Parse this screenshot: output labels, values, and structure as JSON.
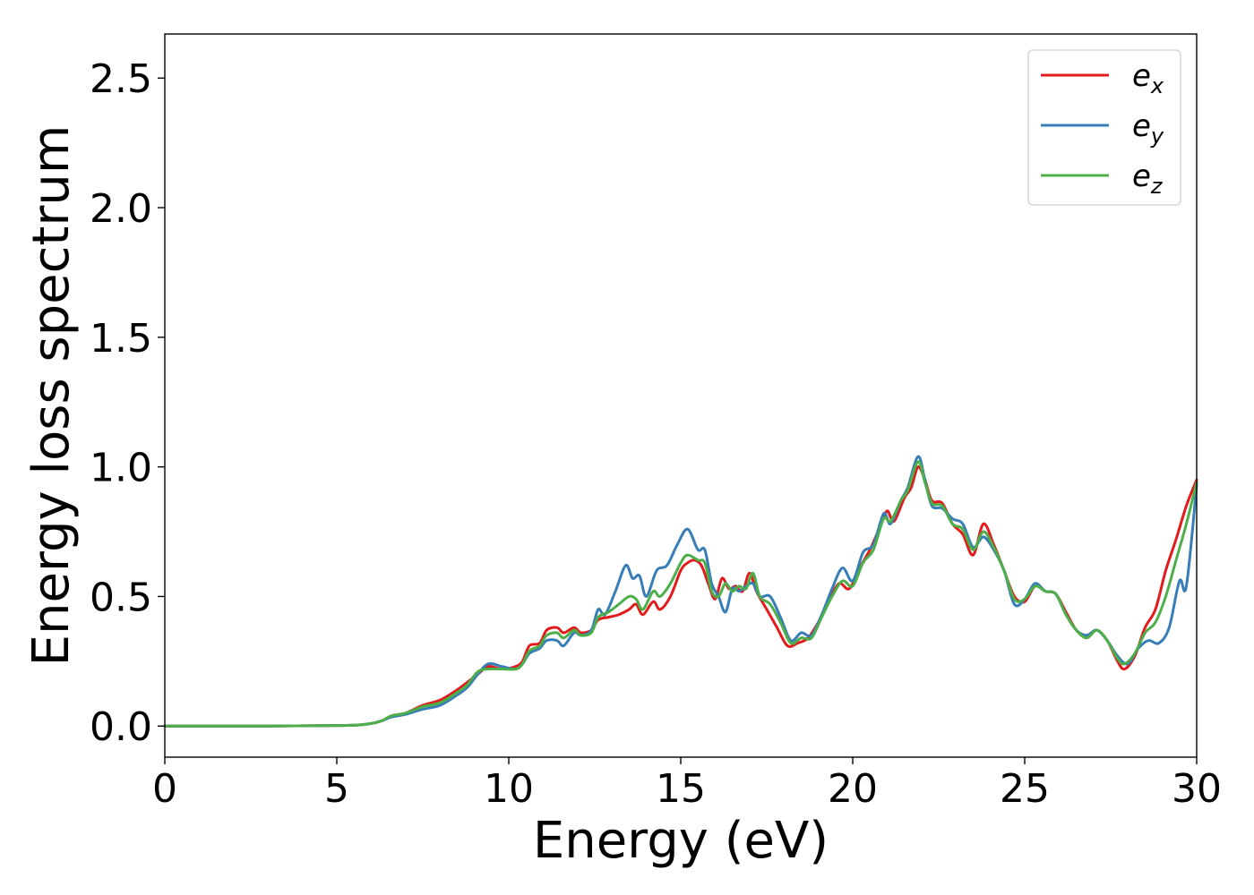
{
  "chart_data": {
    "type": "line",
    "xlabel": "Energy (eV)",
    "ylabel": "Energy loss spectrum",
    "xlim": [
      0,
      30
    ],
    "ylim": [
      -0.12,
      2.67
    ],
    "xticks": [
      0,
      5,
      10,
      15,
      20,
      25,
      30
    ],
    "xtick_labels": [
      "0",
      "5",
      "10",
      "15",
      "20",
      "25",
      "30"
    ],
    "yticks": [
      0.0,
      0.5,
      1.0,
      1.5,
      2.0,
      2.5
    ],
    "ytick_labels": [
      "0.0",
      "0.5",
      "1.0",
      "1.5",
      "2.0",
      "2.5"
    ],
    "grid": false,
    "legend_position": "top-right",
    "series": [
      {
        "name": "e",
        "subscript": "x",
        "color": "#e41a1c",
        "points": [
          [
            0,
            0
          ],
          [
            3,
            0
          ],
          [
            5,
            0.002
          ],
          [
            5.6,
            0.004
          ],
          [
            6,
            0.01
          ],
          [
            6.3,
            0.02
          ],
          [
            6.6,
            0.04
          ],
          [
            7,
            0.05
          ],
          [
            7.5,
            0.08
          ],
          [
            8,
            0.1
          ],
          [
            8.5,
            0.14
          ],
          [
            8.8,
            0.17
          ],
          [
            9.1,
            0.2
          ],
          [
            9.4,
            0.23
          ],
          [
            9.8,
            0.22
          ],
          [
            10.2,
            0.23
          ],
          [
            10.4,
            0.25
          ],
          [
            10.6,
            0.31
          ],
          [
            10.9,
            0.32
          ],
          [
            11.1,
            0.37
          ],
          [
            11.4,
            0.38
          ],
          [
            11.6,
            0.36
          ],
          [
            11.9,
            0.38
          ],
          [
            12.1,
            0.36
          ],
          [
            12.4,
            0.37
          ],
          [
            12.6,
            0.41
          ],
          [
            12.9,
            0.42
          ],
          [
            13.2,
            0.43
          ],
          [
            13.5,
            0.45
          ],
          [
            13.7,
            0.47
          ],
          [
            13.9,
            0.43
          ],
          [
            14.2,
            0.48
          ],
          [
            14.4,
            0.45
          ],
          [
            14.7,
            0.5
          ],
          [
            15,
            0.6
          ],
          [
            15.2,
            0.63
          ],
          [
            15.4,
            0.64
          ],
          [
            15.6,
            0.62
          ],
          [
            15.8,
            0.55
          ],
          [
            16,
            0.49
          ],
          [
            16.2,
            0.57
          ],
          [
            16.4,
            0.53
          ],
          [
            16.6,
            0.54
          ],
          [
            16.8,
            0.52
          ],
          [
            17,
            0.59
          ],
          [
            17.2,
            0.52
          ],
          [
            17.5,
            0.45
          ],
          [
            17.8,
            0.38
          ],
          [
            18.1,
            0.31
          ],
          [
            18.4,
            0.32
          ],
          [
            18.7,
            0.34
          ],
          [
            19,
            0.4
          ],
          [
            19.3,
            0.48
          ],
          [
            19.6,
            0.55
          ],
          [
            19.9,
            0.53
          ],
          [
            20.2,
            0.61
          ],
          [
            20.5,
            0.68
          ],
          [
            20.8,
            0.77
          ],
          [
            21,
            0.83
          ],
          [
            21.2,
            0.79
          ],
          [
            21.5,
            0.88
          ],
          [
            21.7,
            0.92
          ],
          [
            21.9,
            1.0
          ],
          [
            22.1,
            0.95
          ],
          [
            22.3,
            0.87
          ],
          [
            22.6,
            0.86
          ],
          [
            22.9,
            0.78
          ],
          [
            23.2,
            0.74
          ],
          [
            23.5,
            0.66
          ],
          [
            23.8,
            0.78
          ],
          [
            24.1,
            0.7
          ],
          [
            24.4,
            0.6
          ],
          [
            24.7,
            0.5
          ],
          [
            25,
            0.48
          ],
          [
            25.3,
            0.54
          ],
          [
            25.6,
            0.52
          ],
          [
            25.9,
            0.51
          ],
          [
            26.2,
            0.44
          ],
          [
            26.5,
            0.37
          ],
          [
            26.8,
            0.35
          ],
          [
            27.1,
            0.37
          ],
          [
            27.4,
            0.33
          ],
          [
            27.7,
            0.25
          ],
          [
            27.9,
            0.22
          ],
          [
            28.2,
            0.27
          ],
          [
            28.5,
            0.38
          ],
          [
            28.8,
            0.45
          ],
          [
            29.1,
            0.6
          ],
          [
            29.4,
            0.72
          ],
          [
            29.7,
            0.85
          ],
          [
            30,
            0.95
          ]
        ]
      },
      {
        "name": "e",
        "subscript": "y",
        "color": "#377eb8",
        "points": [
          [
            0,
            0
          ],
          [
            3,
            0
          ],
          [
            5,
            0.002
          ],
          [
            5.6,
            0.004
          ],
          [
            6,
            0.01
          ],
          [
            6.3,
            0.02
          ],
          [
            6.6,
            0.035
          ],
          [
            7,
            0.045
          ],
          [
            7.5,
            0.065
          ],
          [
            8,
            0.08
          ],
          [
            8.5,
            0.12
          ],
          [
            8.8,
            0.15
          ],
          [
            9.1,
            0.2
          ],
          [
            9.4,
            0.24
          ],
          [
            9.8,
            0.23
          ],
          [
            10.2,
            0.22
          ],
          [
            10.4,
            0.24
          ],
          [
            10.6,
            0.28
          ],
          [
            10.9,
            0.3
          ],
          [
            11.1,
            0.33
          ],
          [
            11.4,
            0.33
          ],
          [
            11.6,
            0.31
          ],
          [
            11.9,
            0.36
          ],
          [
            12.1,
            0.35
          ],
          [
            12.4,
            0.37
          ],
          [
            12.6,
            0.45
          ],
          [
            12.8,
            0.43
          ],
          [
            13.1,
            0.52
          ],
          [
            13.4,
            0.62
          ],
          [
            13.6,
            0.57
          ],
          [
            13.8,
            0.58
          ],
          [
            14,
            0.5
          ],
          [
            14.3,
            0.6
          ],
          [
            14.6,
            0.62
          ],
          [
            14.9,
            0.7
          ],
          [
            15.2,
            0.76
          ],
          [
            15.5,
            0.68
          ],
          [
            15.7,
            0.68
          ],
          [
            15.9,
            0.55
          ],
          [
            16.1,
            0.5
          ],
          [
            16.3,
            0.44
          ],
          [
            16.5,
            0.53
          ],
          [
            16.7,
            0.52
          ],
          [
            16.9,
            0.54
          ],
          [
            17.1,
            0.55
          ],
          [
            17.3,
            0.5
          ],
          [
            17.6,
            0.5
          ],
          [
            17.9,
            0.42
          ],
          [
            18.2,
            0.33
          ],
          [
            18.5,
            0.36
          ],
          [
            18.8,
            0.35
          ],
          [
            19.1,
            0.43
          ],
          [
            19.4,
            0.53
          ],
          [
            19.7,
            0.61
          ],
          [
            20,
            0.56
          ],
          [
            20.3,
            0.67
          ],
          [
            20.6,
            0.7
          ],
          [
            20.9,
            0.82
          ],
          [
            21.1,
            0.78
          ],
          [
            21.4,
            0.87
          ],
          [
            21.6,
            0.92
          ],
          [
            21.9,
            1.04
          ],
          [
            22.1,
            0.95
          ],
          [
            22.3,
            0.85
          ],
          [
            22.6,
            0.84
          ],
          [
            22.9,
            0.8
          ],
          [
            23.2,
            0.78
          ],
          [
            23.5,
            0.69
          ],
          [
            23.8,
            0.73
          ],
          [
            24.1,
            0.68
          ],
          [
            24.4,
            0.6
          ],
          [
            24.7,
            0.47
          ],
          [
            25,
            0.49
          ],
          [
            25.3,
            0.55
          ],
          [
            25.6,
            0.52
          ],
          [
            25.9,
            0.51
          ],
          [
            26.2,
            0.43
          ],
          [
            26.5,
            0.37
          ],
          [
            26.8,
            0.35
          ],
          [
            27.1,
            0.37
          ],
          [
            27.4,
            0.33
          ],
          [
            27.7,
            0.27
          ],
          [
            28,
            0.24
          ],
          [
            28.3,
            0.3
          ],
          [
            28.6,
            0.33
          ],
          [
            28.9,
            0.32
          ],
          [
            29.2,
            0.38
          ],
          [
            29.5,
            0.56
          ],
          [
            29.7,
            0.54
          ],
          [
            30,
            0.93
          ]
        ]
      },
      {
        "name": "e",
        "subscript": "z",
        "color": "#4daf4a",
        "points": [
          [
            0,
            0
          ],
          [
            3,
            0
          ],
          [
            5,
            0.002
          ],
          [
            5.6,
            0.004
          ],
          [
            6,
            0.01
          ],
          [
            6.3,
            0.02
          ],
          [
            6.6,
            0.04
          ],
          [
            7,
            0.05
          ],
          [
            7.5,
            0.075
          ],
          [
            8,
            0.09
          ],
          [
            8.5,
            0.13
          ],
          [
            8.8,
            0.16
          ],
          [
            9.1,
            0.21
          ],
          [
            9.4,
            0.22
          ],
          [
            9.8,
            0.22
          ],
          [
            10.2,
            0.22
          ],
          [
            10.4,
            0.24
          ],
          [
            10.6,
            0.29
          ],
          [
            10.9,
            0.31
          ],
          [
            11.1,
            0.35
          ],
          [
            11.4,
            0.36
          ],
          [
            11.6,
            0.34
          ],
          [
            11.9,
            0.37
          ],
          [
            12.1,
            0.35
          ],
          [
            12.4,
            0.36
          ],
          [
            12.6,
            0.42
          ],
          [
            12.9,
            0.44
          ],
          [
            13.2,
            0.47
          ],
          [
            13.5,
            0.5
          ],
          [
            13.7,
            0.49
          ],
          [
            13.9,
            0.45
          ],
          [
            14.2,
            0.52
          ],
          [
            14.4,
            0.5
          ],
          [
            14.7,
            0.55
          ],
          [
            15,
            0.63
          ],
          [
            15.2,
            0.66
          ],
          [
            15.5,
            0.64
          ],
          [
            15.7,
            0.63
          ],
          [
            15.9,
            0.52
          ],
          [
            16.1,
            0.5
          ],
          [
            16.3,
            0.55
          ],
          [
            16.5,
            0.52
          ],
          [
            16.7,
            0.54
          ],
          [
            16.9,
            0.53
          ],
          [
            17.1,
            0.59
          ],
          [
            17.3,
            0.5
          ],
          [
            17.6,
            0.47
          ],
          [
            17.9,
            0.4
          ],
          [
            18.2,
            0.32
          ],
          [
            18.5,
            0.34
          ],
          [
            18.8,
            0.34
          ],
          [
            19.1,
            0.42
          ],
          [
            19.4,
            0.5
          ],
          [
            19.7,
            0.56
          ],
          [
            20,
            0.54
          ],
          [
            20.3,
            0.63
          ],
          [
            20.6,
            0.68
          ],
          [
            20.9,
            0.8
          ],
          [
            21.1,
            0.79
          ],
          [
            21.4,
            0.87
          ],
          [
            21.6,
            0.91
          ],
          [
            21.9,
            1.02
          ],
          [
            22.1,
            0.94
          ],
          [
            22.3,
            0.86
          ],
          [
            22.6,
            0.85
          ],
          [
            22.9,
            0.78
          ],
          [
            23.2,
            0.76
          ],
          [
            23.5,
            0.68
          ],
          [
            23.8,
            0.75
          ],
          [
            24.1,
            0.69
          ],
          [
            24.4,
            0.6
          ],
          [
            24.7,
            0.49
          ],
          [
            25,
            0.49
          ],
          [
            25.3,
            0.54
          ],
          [
            25.6,
            0.52
          ],
          [
            25.9,
            0.51
          ],
          [
            26.2,
            0.43
          ],
          [
            26.5,
            0.37
          ],
          [
            26.8,
            0.34
          ],
          [
            27.1,
            0.37
          ],
          [
            27.4,
            0.33
          ],
          [
            27.7,
            0.26
          ],
          [
            27.9,
            0.24
          ],
          [
            28.2,
            0.28
          ],
          [
            28.5,
            0.36
          ],
          [
            28.8,
            0.4
          ],
          [
            29.1,
            0.5
          ],
          [
            29.4,
            0.64
          ],
          [
            29.7,
            0.78
          ],
          [
            30,
            0.94
          ]
        ]
      }
    ]
  }
}
